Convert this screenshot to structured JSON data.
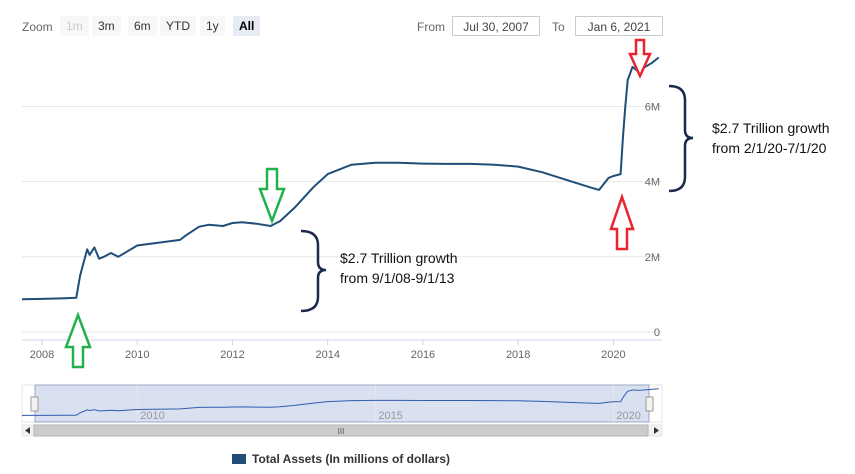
{
  "toolbar": {
    "zoom_label": "Zoom",
    "zoom_buttons": [
      "1m",
      "3m",
      "6m",
      "YTD",
      "1y",
      "All"
    ],
    "from_label": "From",
    "from_value": "Jul 30, 2007",
    "to_label": "To",
    "to_value": "Jan 6, 2021"
  },
  "annotations": {
    "first_growth": [
      "$2.7 Trillion growth",
      "from 9/1/08-9/1/13"
    ],
    "second_growth": [
      "$2.7 Trillion growth",
      "from 2/1/20-7/1/20"
    ]
  },
  "legend": {
    "label": "Total Assets (In millions of dollars)"
  },
  "navigator": {
    "tick_labels": [
      "2010",
      "2015",
      "2020"
    ],
    "scroll_label": "III"
  },
  "colors": {
    "series": "#1f4e79",
    "green_arrow": "#22b14c",
    "red_arrow": "#e8242f",
    "navigator_fill": "#ccd6eb"
  },
  "chart_data": {
    "type": "line",
    "xlabel": "",
    "ylabel": "",
    "x_ticks": [
      2008,
      2010,
      2012,
      2014,
      2016,
      2018,
      2020
    ],
    "y_ticks": [
      0,
      2,
      4,
      6
    ],
    "y_tick_labels": [
      "0",
      "2M",
      "4M",
      "6M"
    ],
    "ylim": [
      0,
      7.5
    ],
    "xlim": [
      2007.58,
      2021.02
    ],
    "series": [
      {
        "name": "Total Assets (In millions of dollars)",
        "x": [
          2007.58,
          2008.0,
          2008.5,
          2008.72,
          2008.8,
          2008.95,
          2009.0,
          2009.1,
          2009.2,
          2009.3,
          2009.45,
          2009.6,
          2009.8,
          2010.0,
          2010.3,
          2010.6,
          2010.9,
          2011.0,
          2011.3,
          2011.5,
          2011.8,
          2012.0,
          2012.2,
          2012.5,
          2012.8,
          2013.0,
          2013.3,
          2013.7,
          2014.0,
          2014.5,
          2015.0,
          2015.5,
          2016.0,
          2016.5,
          2017.0,
          2017.5,
          2018.0,
          2018.5,
          2019.0,
          2019.5,
          2019.7,
          2019.9,
          2020.0,
          2020.15,
          2020.2,
          2020.25,
          2020.3,
          2020.4,
          2020.5,
          2020.6,
          2020.8,
          2020.95
        ],
        "y": [
          0.87,
          0.88,
          0.9,
          0.91,
          1.5,
          2.2,
          2.05,
          2.25,
          1.95,
          2.0,
          2.1,
          2.0,
          2.15,
          2.3,
          2.35,
          2.4,
          2.45,
          2.55,
          2.8,
          2.85,
          2.82,
          2.9,
          2.92,
          2.88,
          2.82,
          2.95,
          3.3,
          3.85,
          4.2,
          4.45,
          4.5,
          4.5,
          4.48,
          4.47,
          4.47,
          4.45,
          4.4,
          4.25,
          4.05,
          3.85,
          3.78,
          4.1,
          4.15,
          4.2,
          5.2,
          6.0,
          6.7,
          7.05,
          6.95,
          7.0,
          7.15,
          7.3
        ]
      }
    ],
    "grid": true,
    "legend_position": "bottom-left"
  }
}
